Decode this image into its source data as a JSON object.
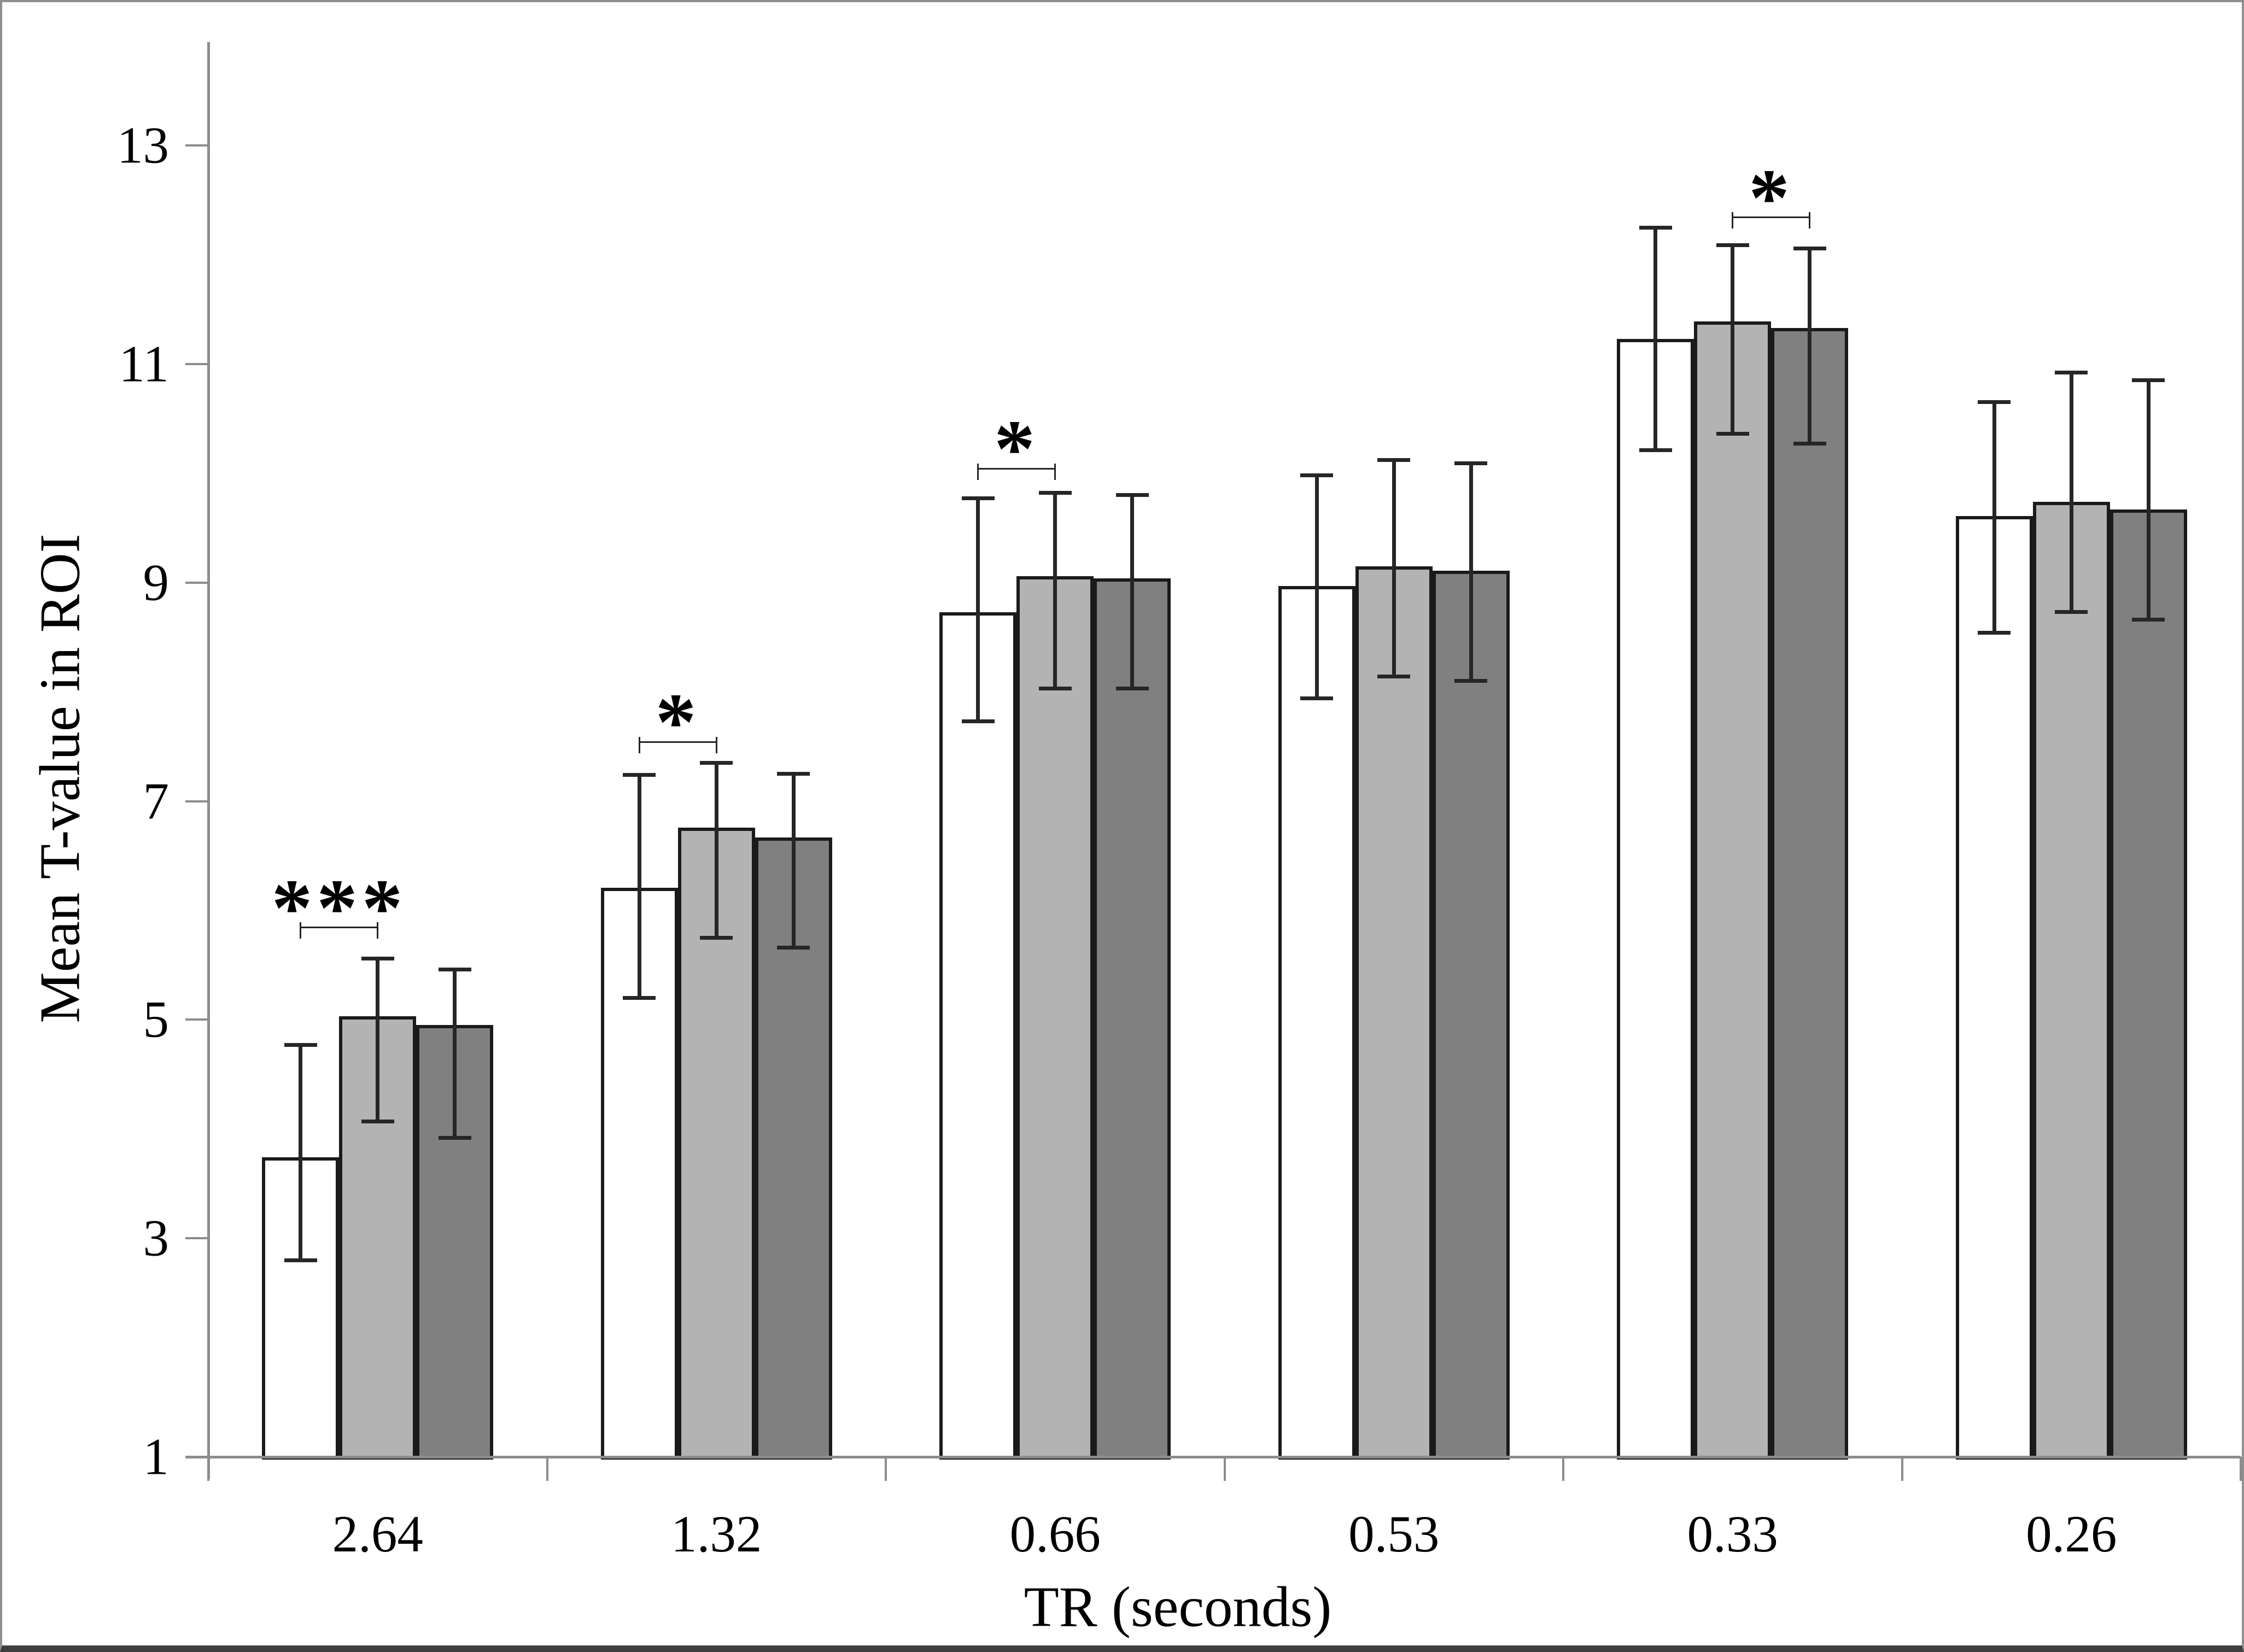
{
  "figure": {
    "y_axis_title": "Mean T-value in ROI",
    "x_axis_title": "TR (seconds)"
  },
  "chart_data": {
    "type": "bar",
    "title": "",
    "xlabel": "TR (seconds)",
    "ylabel": "Mean T-value in ROI",
    "categories": [
      "2.64",
      "1.32",
      "0.66",
      "0.53",
      "0.33",
      "0.26"
    ],
    "y_ticks": [
      "1",
      "3",
      "5",
      "7",
      "9",
      "11",
      "13"
    ],
    "ylim": [
      1,
      14
    ],
    "grid": false,
    "legend_position": "none",
    "series": [
      {
        "name": "white",
        "fill": "#ffffff",
        "values": [
          3.74,
          6.21,
          8.73,
          8.97,
          11.23,
          9.61
        ],
        "err_low": [
          2.8,
          5.2,
          7.73,
          7.94,
          10.21,
          8.54
        ],
        "err_high": [
          4.77,
          7.24,
          9.77,
          9.98,
          12.25,
          10.65
        ]
      },
      {
        "name": "light_gray",
        "fill": "#b3b3b3",
        "values": [
          5.03,
          6.76,
          9.06,
          9.15,
          11.39,
          9.74
        ],
        "err_low": [
          4.07,
          5.75,
          8.03,
          8.14,
          10.36,
          8.73
        ],
        "err_high": [
          5.56,
          7.35,
          9.82,
          10.12,
          12.09,
          10.92
        ]
      },
      {
        "name": "dark_gray",
        "fill": "#808080",
        "values": [
          4.95,
          6.67,
          9.04,
          9.11,
          11.33,
          9.67
        ],
        "err_low": [
          3.92,
          5.66,
          8.03,
          8.1,
          10.27,
          8.66
        ],
        "err_high": [
          5.46,
          7.25,
          9.8,
          10.09,
          12.06,
          10.85
        ]
      }
    ],
    "significance": [
      {
        "category_index": 0,
        "label": "***",
        "from_series": 0,
        "to_series": 1,
        "y": 5.85
      },
      {
        "category_index": 1,
        "label": "*",
        "from_series": 0,
        "to_series": 1,
        "y": 7.55
      },
      {
        "category_index": 2,
        "label": "*",
        "from_series": 0,
        "to_series": 1,
        "y": 10.05
      },
      {
        "category_index": 4,
        "label": "*",
        "from_series": 1,
        "to_series": 2,
        "y": 12.35
      }
    ],
    "colors": {
      "bar_border": "#1a1a1a",
      "axis": "#8c8c8c",
      "error_bar": "#262626",
      "text": "#000000",
      "background": "#ffffff"
    }
  }
}
